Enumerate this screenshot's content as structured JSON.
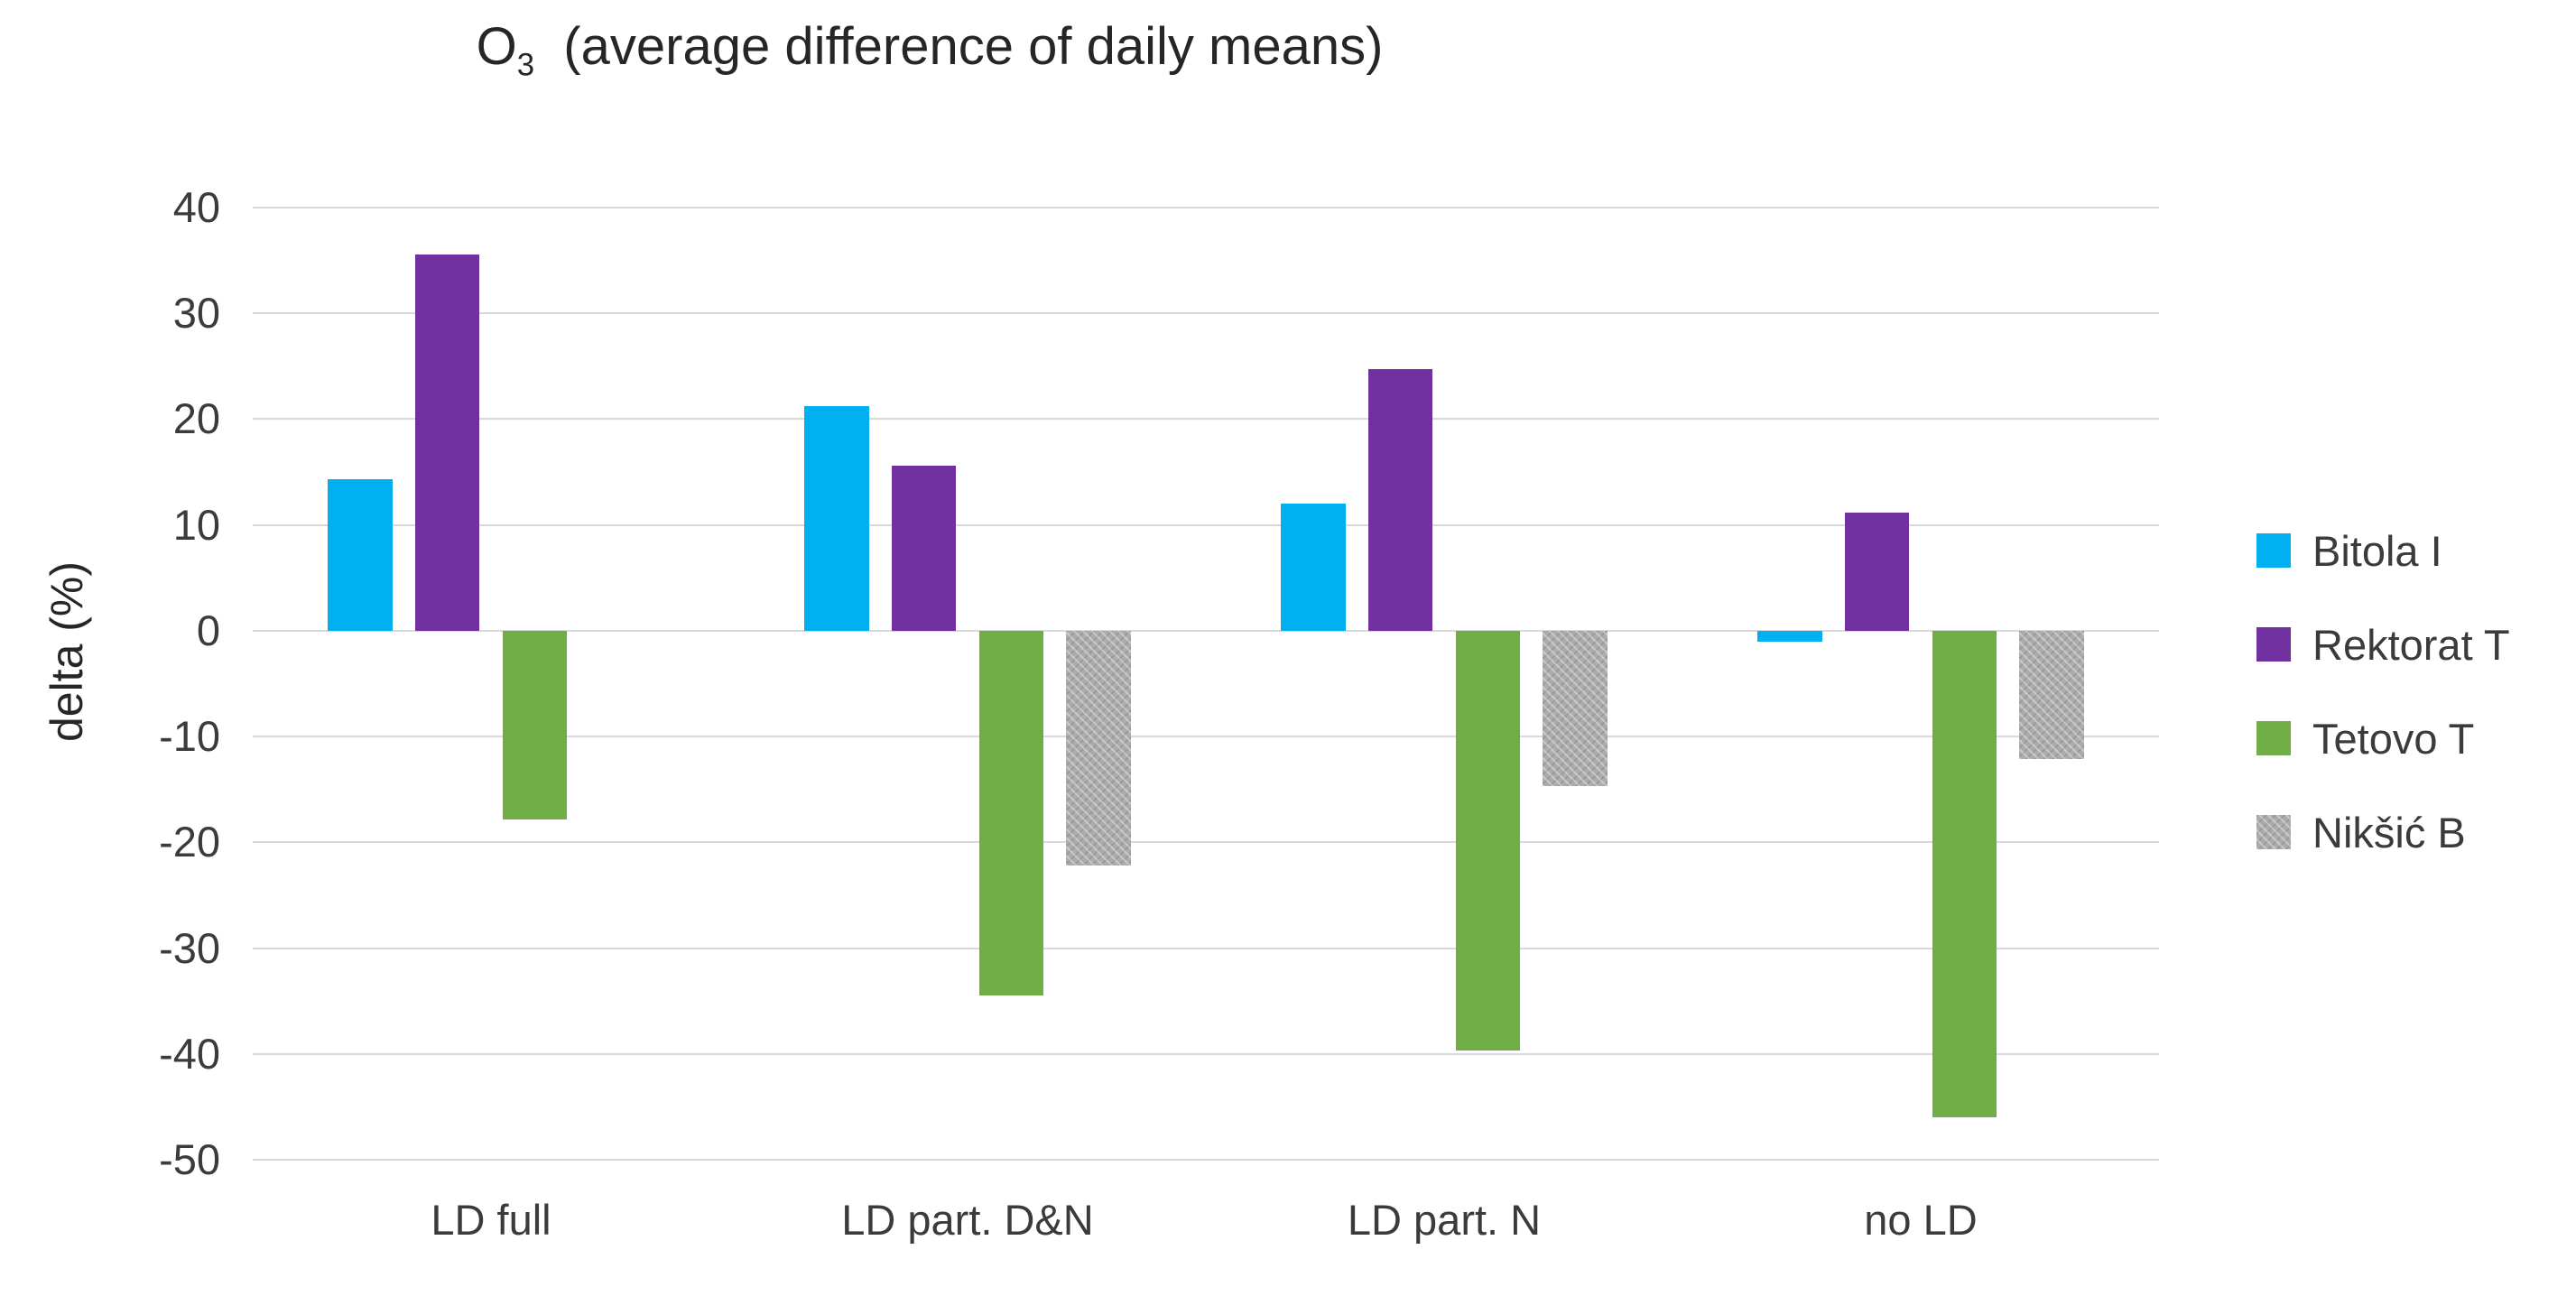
{
  "title": {
    "formula_base": "O",
    "formula_sub": "3",
    "text": "  (average difference of daily means)"
  },
  "y_axis_label": "delta (%)",
  "chart_data": {
    "type": "bar",
    "title": "O3 (average difference of daily means)",
    "categories": [
      "LD full",
      "LD part. D&N",
      "LD part. N",
      "no LD"
    ],
    "series": [
      {
        "name": "Bitola I",
        "color": "#00B0F0",
        "pattern": false,
        "values": [
          14.3,
          21.2,
          12.0,
          -1.0
        ]
      },
      {
        "name": "Rektorat T",
        "color": "#7030A0",
        "pattern": false,
        "values": [
          35.6,
          15.6,
          24.7,
          11.2
        ]
      },
      {
        "name": "Tetovo T",
        "color": "#70AD47",
        "pattern": false,
        "values": [
          -17.8,
          -34.5,
          -39.7,
          -46.0
        ]
      },
      {
        "name": "Nikšić B",
        "color": "#ACACAC",
        "pattern": true,
        "values": [
          0,
          -22.2,
          -14.7,
          -12.1
        ]
      }
    ],
    "xlabel": "",
    "ylabel": "delta (%)",
    "ylim": [
      -50,
      40
    ],
    "y_tick_step": 10,
    "y_ticks": [
      "40",
      "30",
      "20",
      "10",
      "0",
      "-10",
      "-20",
      "-30",
      "-40",
      "-50"
    ],
    "grid": true,
    "gridline_color": "#D9D9D9",
    "legend_position": "right"
  }
}
